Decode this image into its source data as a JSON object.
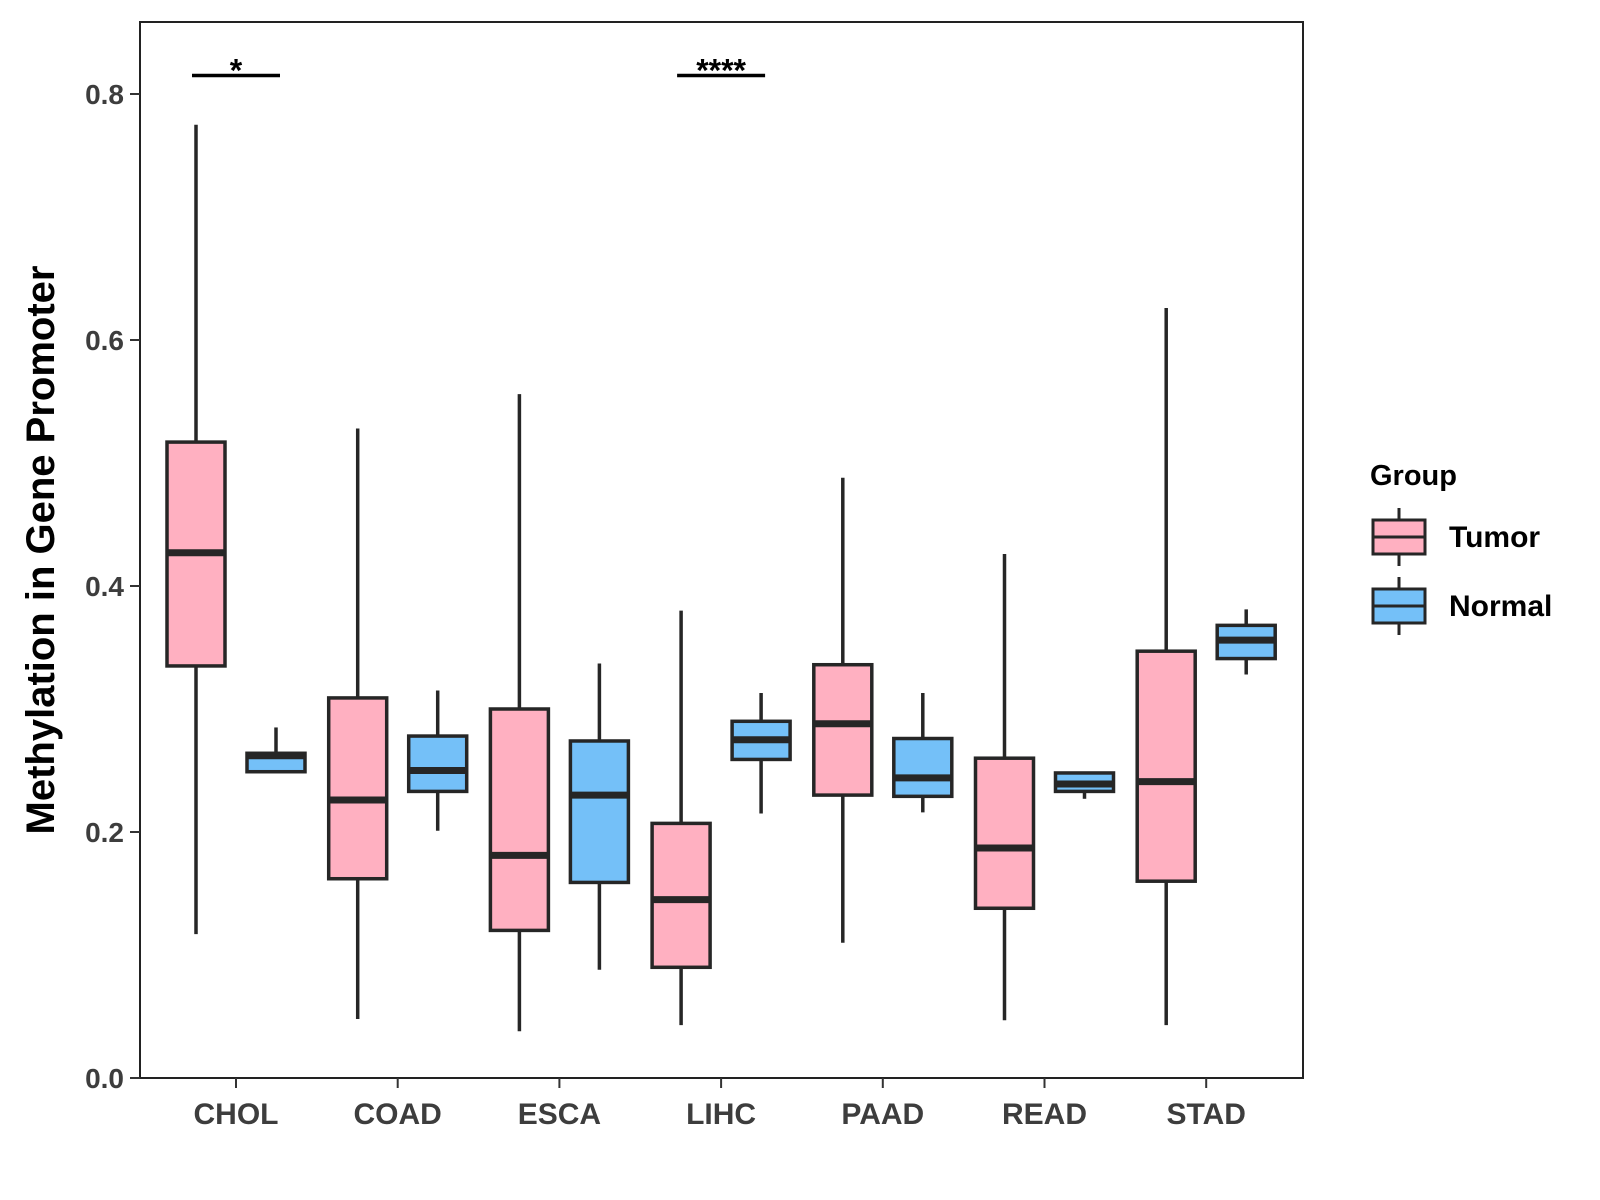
{
  "chart_data": {
    "type": "box",
    "ylabel": "Methylation in Gene Promoter",
    "xlabel": "",
    "ylim": [
      0.0,
      0.86
    ],
    "yticks": [
      "0.0",
      "0.2",
      "0.4",
      "0.6",
      "0.8"
    ],
    "ytick_values": [
      0.0,
      0.2,
      0.4,
      0.6,
      0.8
    ],
    "categories": [
      "CHOL",
      "COAD",
      "ESCA",
      "LIHC",
      "PAAD",
      "READ",
      "STAD"
    ],
    "legend": {
      "title": "Group",
      "position": "right",
      "items": [
        {
          "name": "Tumor",
          "color": "#FFB0C1"
        },
        {
          "name": "Normal",
          "color": "#74C0F8"
        }
      ]
    },
    "series": [
      {
        "name": "Tumor",
        "color": "#FFB0C1",
        "boxes": [
          {
            "category": "CHOL",
            "min": 0.117,
            "q1": 0.335,
            "median": 0.427,
            "q3": 0.517,
            "max": 0.775
          },
          {
            "category": "COAD",
            "min": 0.048,
            "q1": 0.162,
            "median": 0.226,
            "q3": 0.309,
            "max": 0.528
          },
          {
            "category": "ESCA",
            "min": 0.038,
            "q1": 0.12,
            "median": 0.181,
            "q3": 0.3,
            "max": 0.556
          },
          {
            "category": "LIHC",
            "min": 0.043,
            "q1": 0.09,
            "median": 0.145,
            "q3": 0.207,
            "max": 0.38
          },
          {
            "category": "PAAD",
            "min": 0.11,
            "q1": 0.23,
            "median": 0.288,
            "q3": 0.336,
            "max": 0.488
          },
          {
            "category": "READ",
            "min": 0.047,
            "q1": 0.138,
            "median": 0.187,
            "q3": 0.26,
            "max": 0.426
          },
          {
            "category": "STAD",
            "min": 0.043,
            "q1": 0.16,
            "median": 0.241,
            "q3": 0.347,
            "max": 0.626
          }
        ]
      },
      {
        "name": "Normal",
        "color": "#74C0F8",
        "boxes": [
          {
            "category": "CHOL",
            "min": 0.249,
            "q1": 0.249,
            "median": 0.262,
            "q3": 0.264,
            "max": 0.285
          },
          {
            "category": "COAD",
            "min": 0.201,
            "q1": 0.233,
            "median": 0.25,
            "q3": 0.278,
            "max": 0.315
          },
          {
            "category": "ESCA",
            "min": 0.088,
            "q1": 0.159,
            "median": 0.23,
            "q3": 0.274,
            "max": 0.337
          },
          {
            "category": "LIHC",
            "min": 0.215,
            "q1": 0.259,
            "median": 0.275,
            "q3": 0.29,
            "max": 0.313
          },
          {
            "category": "PAAD",
            "min": 0.216,
            "q1": 0.229,
            "median": 0.244,
            "q3": 0.276,
            "max": 0.313
          },
          {
            "category": "READ",
            "min": 0.227,
            "q1": 0.233,
            "median": 0.239,
            "q3": 0.248,
            "max": 0.248
          },
          {
            "category": "STAD",
            "min": 0.328,
            "q1": 0.341,
            "median": 0.356,
            "q3": 0.368,
            "max": 0.381
          }
        ]
      }
    ],
    "significance": [
      {
        "category": "CHOL",
        "label": "*",
        "y": 0.815
      },
      {
        "category": "LIHC",
        "label": "****",
        "y": 0.815
      }
    ],
    "grid": false
  }
}
